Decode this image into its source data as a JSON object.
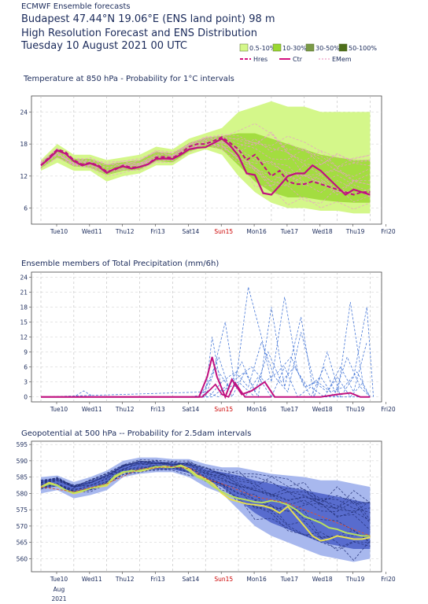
{
  "header": {
    "line0": "ECMWF Ensemble forecasts",
    "line1": "Budapest 47.44°N 19.06°E (ENS land point) 98 m",
    "line2": "High Resolution Forecast and ENS Distribution",
    "line3": "Tuesday 10 August 2021 00 UTC"
  },
  "legend": {
    "prob_bands": [
      {
        "label": "0.5-10%",
        "color": "#d4f78a"
      },
      {
        "label": "10-30%",
        "color": "#9ad832"
      },
      {
        "label": "30-50%",
        "color": "#7a9a46"
      },
      {
        "label": "50-100%",
        "color": "#4d6e1a"
      }
    ],
    "lines": [
      {
        "label": "Hres",
        "color": "#d4117f",
        "style": "dashed"
      },
      {
        "label": "Ctr",
        "color": "#d4117f",
        "style": "solid"
      },
      {
        "label": "EMem",
        "color": "#e88ab8",
        "style": "dashed"
      }
    ]
  },
  "x_axis": {
    "labels": [
      "Tue10",
      "Wed11",
      "Thu12",
      "Fri13",
      "Sat14",
      "Sun15",
      "Mon16",
      "Tue17",
      "Wed18",
      "Thu19",
      "Fri20"
    ],
    "weekend_index": 5,
    "weekend_color": "#cc0000",
    "extra_bottom": [
      "Aug",
      "2021"
    ]
  },
  "chart_data": [
    {
      "type": "area",
      "title": "Temperature at 850 hPa - Probability for 1°C intervals",
      "ylim": [
        3,
        27
      ],
      "yticks": [
        6,
        12,
        18,
        24
      ],
      "xlim": [
        0,
        10.3
      ],
      "band_colors": [
        "#d4f78a",
        "#9ad832",
        "#e8a0c8"
      ],
      "ens_spread": {
        "x": [
          0,
          0.5,
          1,
          1.5,
          2,
          2.5,
          3,
          3.5,
          4,
          4.5,
          5,
          5.5,
          6,
          6.5,
          7,
          7.5,
          8,
          8.5,
          9,
          9.5,
          10
        ],
        "low": [
          13,
          14.5,
          13,
          13,
          11,
          12,
          12.5,
          14,
          14,
          16,
          17,
          16,
          12,
          9,
          7,
          6,
          6,
          5.5,
          5.5,
          5,
          5
        ],
        "high": [
          15,
          18,
          16,
          16,
          15,
          15.5,
          16,
          17.5,
          17,
          19,
          20,
          21,
          24,
          25,
          26,
          25,
          25,
          24,
          24,
          24,
          24
        ],
        "q1": [
          13.5,
          15.5,
          13.8,
          13.6,
          12.2,
          13,
          13.2,
          14.8,
          14.6,
          16.6,
          17.6,
          17,
          14,
          11,
          9,
          8,
          8,
          7.5,
          7.2,
          7,
          7
        ],
        "q3": [
          14.6,
          17.2,
          15.2,
          15.2,
          14.2,
          14.6,
          15,
          16.6,
          16.2,
          18.2,
          19.2,
          19.5,
          20,
          20,
          19,
          18,
          17,
          16,
          15.5,
          15,
          15
        ]
      },
      "hres": {
        "x": [
          0,
          0.25,
          0.5,
          0.75,
          1,
          1.25,
          1.5,
          1.75,
          2,
          2.25,
          2.5,
          2.75,
          3,
          3.25,
          3.5,
          3.75,
          4,
          4.25,
          4.5,
          4.75,
          5,
          5.25,
          5.5,
          5.75,
          6,
          6.25,
          6.5,
          6.75,
          7,
          7.25,
          7.5,
          7.75,
          8,
          8.25,
          8.5,
          8.75,
          9,
          9.25,
          9.5,
          9.75,
          10
        ],
        "y": [
          14,
          15.5,
          17,
          16.5,
          15,
          14.2,
          14.5,
          14,
          12.8,
          13.2,
          14,
          13.6,
          13.7,
          14.2,
          15.5,
          15.6,
          15.4,
          16.3,
          17.5,
          18,
          18,
          18.6,
          19.3,
          18.2,
          17,
          15,
          16,
          14,
          12,
          13,
          11,
          10.5,
          10.5,
          11,
          10.5,
          10,
          9.5,
          9,
          8.5,
          9,
          9
        ]
      },
      "ctr": {
        "x": [
          0,
          0.25,
          0.5,
          0.75,
          1,
          1.25,
          1.5,
          1.75,
          2,
          2.25,
          2.5,
          2.75,
          3,
          3.25,
          3.5,
          3.75,
          4,
          4.25,
          4.5,
          4.75,
          5,
          5.25,
          5.5,
          5.75,
          6,
          6.25,
          6.5,
          6.75,
          7,
          7.25,
          7.5,
          7.75,
          8,
          8.25,
          8.5,
          8.75,
          9,
          9.25,
          9.5,
          9.75,
          10
        ],
        "y": [
          14,
          15.3,
          16.8,
          16.2,
          14.8,
          14,
          14.4,
          13.8,
          12.6,
          13.4,
          13.8,
          13.4,
          13.7,
          14.2,
          15.2,
          15.3,
          15.2,
          16,
          17,
          17.3,
          17.4,
          18.2,
          19,
          17.7,
          15.8,
          12.5,
          12.2,
          8.8,
          8.5,
          10.2,
          12,
          12.5,
          12.5,
          14,
          13,
          11.5,
          10,
          8.5,
          9.5,
          9,
          8.5
        ]
      },
      "members": 16
    },
    {
      "type": "line",
      "title": "Ensemble members of Total Precipitation (mm/6h)",
      "ylim": [
        -1,
        25
      ],
      "yticks": [
        0,
        3,
        6,
        9,
        12,
        15,
        18,
        21,
        24
      ],
      "xlim": [
        0,
        10.3
      ],
      "member_color": "#4a7ad8",
      "ctr_color": "#c0117f",
      "members": [
        {
          "x": [
            0,
            1,
            1.3,
            1.6,
            4.5,
            5,
            5.2,
            5.5,
            6,
            6.5,
            7,
            7.5,
            8,
            8.5,
            9,
            9.5,
            10
          ],
          "y": [
            0,
            0,
            1.2,
            0,
            0,
            0.5,
            12,
            1,
            3,
            0,
            0,
            0,
            0,
            0,
            0,
            0,
            0
          ]
        },
        {
          "x": [
            0,
            4.8,
            5.2,
            5.6,
            5.9,
            6.3,
            6.7,
            7,
            7.4,
            7.8,
            8.2,
            8.6,
            9,
            9.4,
            9.8,
            10
          ],
          "y": [
            0,
            0,
            4,
            15,
            2,
            22,
            12,
            3,
            20,
            5,
            0,
            6,
            0,
            19,
            2,
            0
          ]
        },
        {
          "x": [
            0,
            4.9,
            5.4,
            5.8,
            6.2,
            6.6,
            7,
            7.4,
            7.9,
            8.3,
            8.7,
            9.1,
            9.5,
            9.9,
            10.1
          ],
          "y": [
            0,
            0,
            8,
            0,
            5,
            0,
            18,
            2,
            16,
            0,
            9,
            0,
            4,
            18,
            0
          ]
        },
        {
          "x": [
            0,
            5,
            5.3,
            5.7,
            6.1,
            6.5,
            6.9,
            7.3,
            7.7,
            8.1,
            8.5,
            8.9,
            9.3,
            9.7,
            10
          ],
          "y": [
            0,
            0,
            6,
            2,
            7,
            1,
            9,
            3,
            6,
            2,
            4,
            0,
            8,
            2,
            0
          ]
        },
        {
          "x": [
            0,
            5.1,
            5.5,
            5.9,
            6.3,
            6.7,
            7.1,
            7.5,
            7.9,
            8.3,
            8.7,
            9.1,
            9.5,
            9.9
          ],
          "y": [
            0,
            0,
            3,
            5,
            2,
            11,
            4,
            1,
            13,
            3,
            1,
            6,
            1,
            11
          ]
        },
        {
          "x": [
            0,
            5.2,
            5.6,
            6,
            6.4,
            6.8,
            7.2,
            7.6,
            8,
            8.4,
            8.8,
            9.2,
            9.6,
            10
          ],
          "y": [
            0,
            0,
            2,
            4,
            6,
            3,
            5,
            8,
            2,
            3,
            1,
            2,
            5,
            0
          ]
        },
        {
          "x": [
            0,
            5,
            5.4,
            5.8,
            6.2,
            6.6,
            7,
            7.4,
            7.8,
            8.2,
            8.6,
            9,
            9.4,
            9.8
          ],
          "y": [
            0,
            1,
            0,
            3,
            0,
            4,
            0,
            6,
            0,
            2,
            0,
            4,
            0,
            3
          ]
        }
      ],
      "ctr": {
        "x": [
          0,
          4.8,
          5.05,
          5.2,
          5.35,
          5.6,
          5.8,
          6.1,
          6.4,
          6.8,
          7.1,
          7.5,
          8,
          8.5,
          9,
          9.4,
          9.7,
          10
        ],
        "y": [
          0,
          0,
          4,
          8,
          4,
          0,
          3.5,
          0.5,
          1.2,
          3,
          0,
          0,
          0,
          0,
          0.5,
          0.8,
          0,
          0
        ]
      },
      "ctr2": {
        "x": [
          0,
          4.9,
          5.15,
          5.3,
          5.5,
          5.7,
          5.9,
          6.2,
          6.6,
          7
        ],
        "y": [
          0,
          0,
          1.5,
          2.5,
          0.5,
          0,
          2.8,
          0,
          0,
          0
        ]
      }
    },
    {
      "type": "area",
      "title": "Geopotential at 500 hPa -- Probability for 2.5dam intervals",
      "ylim": [
        556,
        596
      ],
      "yticks": [
        560,
        565,
        570,
        575,
        580,
        585,
        590,
        595
      ],
      "xlim": [
        0,
        10.3
      ],
      "band_colors": [
        "#a8b8ee",
        "#4a5ec8",
        "#26337a"
      ],
      "ens_spread": {
        "x": [
          0,
          0.5,
          1,
          1.5,
          2,
          2.5,
          3,
          3.5,
          4,
          4.5,
          5,
          5.5,
          6,
          6.5,
          7,
          7.5,
          8,
          8.5,
          9,
          9.5,
          10
        ],
        "low": [
          580,
          581,
          578.5,
          579.5,
          581,
          585,
          586,
          586.5,
          586.5,
          585,
          582,
          580,
          575,
          570,
          567,
          565,
          563,
          561,
          560,
          559,
          560
        ],
        "high": [
          585,
          585.5,
          583.5,
          585,
          587,
          590,
          591,
          591,
          590.5,
          590.5,
          589,
          588,
          588,
          587,
          586,
          585.5,
          585,
          584,
          584,
          583,
          582
        ],
        "q1": [
          581.5,
          582.2,
          580,
          581,
          582.6,
          586.2,
          587,
          587.3,
          587.3,
          586.3,
          584,
          582,
          578,
          574,
          571,
          569,
          567,
          565,
          564,
          563,
          563
        ],
        "q3": [
          584,
          584.6,
          582.5,
          583.8,
          585.8,
          588.8,
          589.8,
          589.8,
          589.5,
          589.4,
          587.5,
          586.5,
          585.5,
          584,
          583,
          582,
          581,
          580,
          579,
          578,
          577
        ]
      },
      "hres": {
        "x": [
          0,
          0.25,
          0.5,
          0.75,
          1,
          1.25,
          1.5,
          1.75,
          2,
          2.25,
          2.5,
          2.75,
          3,
          3.25,
          3.5,
          3.75,
          4,
          4.25,
          4.5,
          4.75,
          5,
          5.25,
          5.5,
          5.75,
          6,
          6.25,
          6.5,
          6.75,
          7,
          7.25,
          7.5,
          7.75,
          8,
          8.25,
          8.5,
          8.75,
          9,
          9.25,
          9.5,
          9.75,
          10
        ],
        "y": [
          582,
          583.3,
          582.5,
          581,
          580,
          580.6,
          581.6,
          582,
          582.4,
          585,
          586.4,
          587,
          586.8,
          587.4,
          588,
          588.3,
          588,
          588.6,
          587.5,
          585.5,
          584.5,
          582.8,
          580,
          578.2,
          577.5,
          576.8,
          576.5,
          576.2,
          575.5,
          574,
          576,
          573,
          570,
          567,
          565.5,
          566,
          567,
          566.5,
          566,
          566,
          566.5
        ]
      },
      "ctr": {
        "x": [
          0,
          0.25,
          0.5,
          0.75,
          1,
          1.25,
          1.5,
          1.75,
          2,
          2.25,
          2.5,
          2.75,
          3,
          3.25,
          3.5,
          3.75,
          4,
          4.25,
          4.5,
          4.75,
          5,
          5.25,
          5.5,
          5.75,
          6,
          6.25,
          6.5,
          6.75,
          7,
          7.25,
          7.5,
          7.75,
          8,
          8.25,
          8.5,
          8.75,
          9,
          9.25,
          9.5,
          9.75,
          10
        ],
        "y": [
          581.8,
          583,
          582.4,
          581,
          580.2,
          580.8,
          581.6,
          582.2,
          582.8,
          585.4,
          586.6,
          586.8,
          587,
          587.6,
          588.2,
          588,
          588,
          588.4,
          587,
          585,
          584,
          582,
          580.5,
          579.2,
          578.5,
          578,
          577.4,
          577.2,
          577.8,
          577.4,
          576.5,
          575,
          573,
          572,
          571,
          569.5,
          569,
          568,
          567.5,
          567,
          567
        ]
      },
      "mean": {
        "x": [
          0,
          1,
          2,
          3,
          4,
          4.6,
          5,
          5.5,
          6,
          6.5,
          7,
          7.5,
          8,
          8.5,
          9,
          9.5,
          10
        ],
        "y": [
          582,
          580.5,
          583,
          587.5,
          588.2,
          587.5,
          584.5,
          583,
          581,
          579,
          578,
          577,
          575,
          573,
          571,
          569,
          567
        ]
      },
      "members": 16
    }
  ]
}
